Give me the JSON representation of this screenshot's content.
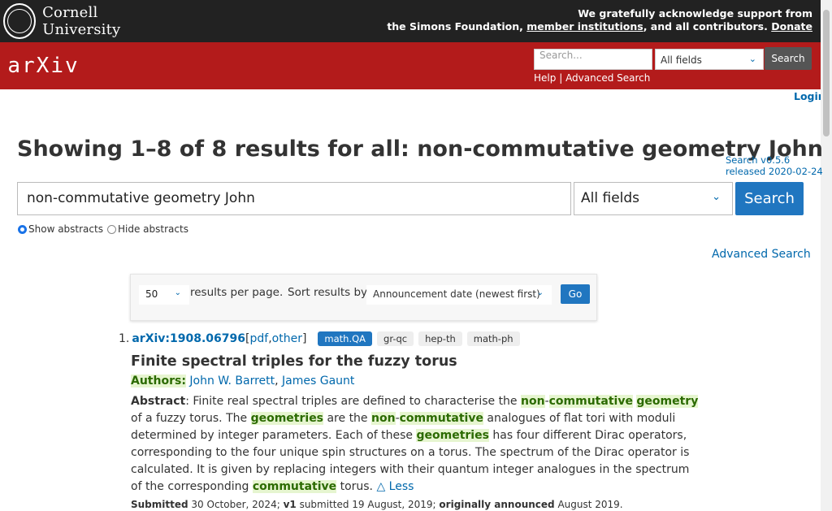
{
  "topbar": {
    "institution": "Cornell University",
    "ack_line1": "We gratefully acknowledge support from",
    "ack_line2_prefix": "the Simons Foundation,",
    "member_link": "member institutions",
    "ack_line2_suffix": ", and all contributors.",
    "donate": "Donate"
  },
  "header": {
    "logo": "arXiv",
    "search_placeholder": "Search...",
    "field_select": "All fields",
    "search_button": "Search",
    "help": "Help",
    "separator": "|",
    "advanced": "Advanced Search",
    "login": "Login"
  },
  "page": {
    "title": "Showing 1–8 of 8 results for all: non-commutative geometry John",
    "release_link": "Search v0.5.6 released 2020-02-24"
  },
  "search": {
    "query": "non-commutative geometry John",
    "field": "All fields",
    "button": "Search",
    "show_abstracts": "Show abstracts",
    "hide_abstracts": "Hide abstracts",
    "advanced": "Advanced Search"
  },
  "options": {
    "page_size": "50",
    "results_per_page": "results per page.",
    "sort_label": "Sort results by",
    "sort_value": "Announcement date (newest first)",
    "go": "Go"
  },
  "result": {
    "number": "1.",
    "id": "arXiv:1908.06796",
    "open_paren": "[",
    "pdf": "pdf",
    "comma": ", ",
    "other": "other",
    "close_paren": "]",
    "tags": [
      "math.QA",
      "gr-qc",
      "hep-th",
      "math-ph"
    ],
    "title": "Finite spectral triples for the fuzzy torus",
    "authors_label": "Authors:",
    "authors": [
      "John W. Barrett",
      "James Gaunt"
    ],
    "abstract_label": "Abstract",
    "less": "△ Less",
    "submitted_label": "Submitted",
    "submitted": "30 October, 2024;",
    "v1_label": "v1",
    "v1_text": "submitted 19 August, 2019;",
    "originally_label": "originally announced",
    "originally": "August 2019."
  }
}
